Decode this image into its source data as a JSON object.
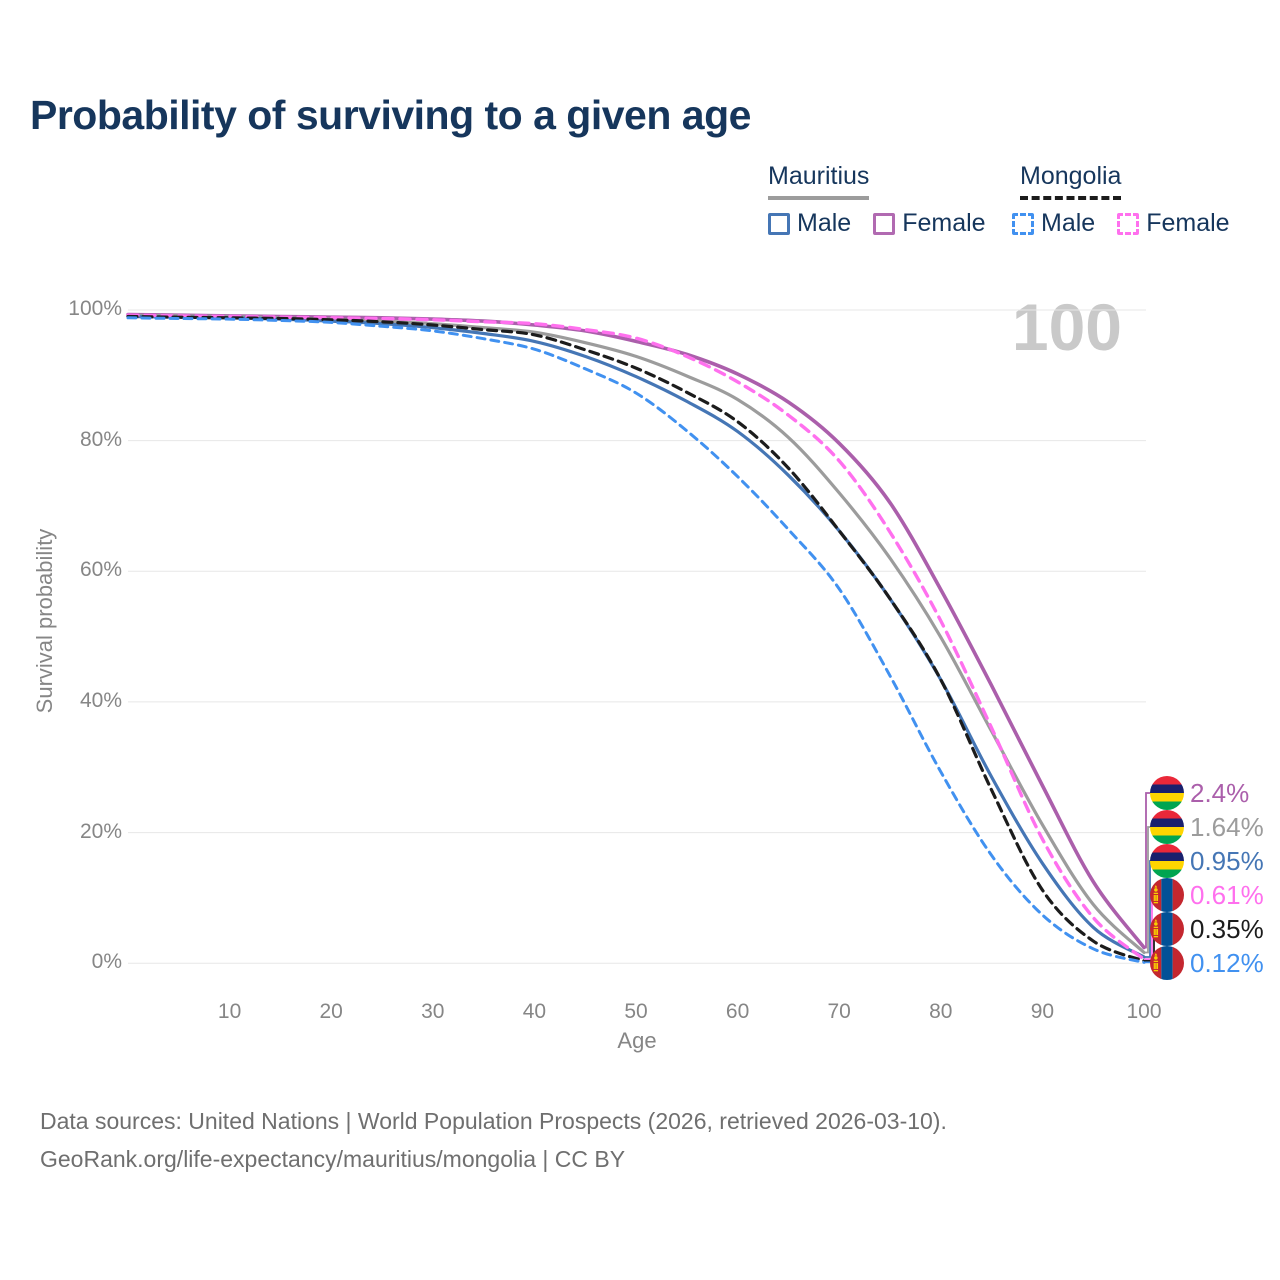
{
  "title": "Probability of surviving to a given age",
  "watermark_age": "100",
  "legend": {
    "groups": [
      {
        "country": "Mauritius",
        "line_style": "solid",
        "underline_color": "#9c9c9c",
        "items": [
          {
            "label": "Male",
            "color": "#4576b5"
          },
          {
            "label": "Female",
            "color": "#b16ab1"
          }
        ]
      },
      {
        "country": "Mongolia",
        "line_style": "dashed",
        "underline_color": "#1c1c1c",
        "items": [
          {
            "label": "Male",
            "color": "#4191f0"
          },
          {
            "label": "Female",
            "color": "#ff70ee"
          }
        ]
      }
    ]
  },
  "chart_data": {
    "type": "line",
    "title": "Probability of surviving to a given age",
    "xlabel": "Age",
    "ylabel": "Survival probability",
    "xlim": [
      0,
      100
    ],
    "ylim": [
      0,
      100
    ],
    "x_ticks": [
      10,
      20,
      30,
      40,
      50,
      60,
      70,
      80,
      90,
      100
    ],
    "y_ticks": [
      0,
      20,
      40,
      60,
      80,
      100
    ],
    "y_tick_labels": [
      "0%",
      "20%",
      "40%",
      "60%",
      "80%",
      "100%"
    ],
    "grid": "horizontal",
    "legend_position": "top-right",
    "x": [
      0,
      5,
      10,
      15,
      20,
      25,
      30,
      35,
      40,
      45,
      50,
      55,
      60,
      65,
      70,
      75,
      80,
      85,
      90,
      95,
      100
    ],
    "series": [
      {
        "name": "Mauritius Female",
        "country": "Mauritius",
        "sex": "Female",
        "color": "#ab5fab",
        "dash": null,
        "width": 3.6,
        "end_label": "2.4%",
        "values": [
          99.3,
          99.2,
          99.1,
          99.0,
          98.9,
          98.8,
          98.6,
          98.3,
          97.7,
          96.8,
          95.2,
          93.2,
          90.2,
          85.9,
          79.6,
          70.5,
          57.2,
          42.5,
          27.2,
          12.5,
          2.4
        ]
      },
      {
        "name": "Mauritius Both sexes",
        "country": "Mauritius",
        "sex": "Both",
        "color": "#9c9c9c",
        "dash": null,
        "width": 3.2,
        "end_label": "1.64%",
        "values": [
          99.2,
          99.1,
          99.0,
          98.8,
          98.6,
          98.3,
          97.9,
          97.3,
          96.6,
          95.0,
          92.9,
          89.9,
          86.3,
          80.5,
          72.0,
          62.0,
          49.9,
          35.5,
          21.2,
          9.0,
          1.64
        ]
      },
      {
        "name": "Mauritius Male",
        "country": "Mauritius",
        "sex": "Male",
        "color": "#4576b5",
        "dash": null,
        "width": 3.2,
        "end_label": "0.95%",
        "values": [
          99.0,
          98.9,
          98.8,
          98.6,
          98.3,
          97.9,
          97.3,
          96.4,
          95.2,
          92.9,
          89.8,
          86.0,
          81.4,
          74.7,
          66.2,
          55.8,
          43.4,
          28.5,
          15.3,
          5.5,
          0.95
        ]
      },
      {
        "name": "Mongolia Female",
        "country": "Mongolia",
        "sex": "Female",
        "color": "#ff70ee",
        "dash": "10 7",
        "width": 3.4,
        "end_label": "0.61%",
        "values": [
          99.2,
          99.1,
          99.0,
          98.9,
          98.8,
          98.7,
          98.5,
          98.2,
          97.9,
          97.0,
          95.7,
          92.9,
          89.0,
          83.9,
          76.9,
          66.0,
          52.4,
          36.0,
          19.0,
          7.0,
          0.61
        ]
      },
      {
        "name": "Mongolia Both sexes",
        "country": "Mongolia",
        "sex": "Both",
        "color": "#1c1c1c",
        "dash": "9 6",
        "width": 3.2,
        "end_label": "0.35%",
        "values": [
          99.0,
          98.9,
          98.8,
          98.7,
          98.5,
          98.2,
          97.7,
          97.0,
          96.2,
          93.9,
          91.1,
          87.4,
          82.9,
          75.8,
          66.2,
          55.8,
          43.4,
          26.5,
          11.2,
          3.4,
          0.35
        ]
      },
      {
        "name": "Mongolia Male",
        "country": "Mongolia",
        "sex": "Male",
        "color": "#4191f0",
        "dash": "8 6",
        "width": 3.0,
        "end_label": "0.12%",
        "values": [
          98.8,
          98.7,
          98.6,
          98.4,
          98.1,
          97.5,
          96.8,
          95.6,
          94.0,
          91.0,
          87.3,
          81.5,
          74.5,
          66.4,
          57.3,
          44.0,
          29.3,
          16.5,
          7.4,
          2.2,
          0.12
        ]
      }
    ]
  },
  "end_labels": [
    {
      "flag": "mauritius",
      "label": "2.4%",
      "color": "#ab5fab"
    },
    {
      "flag": "mauritius",
      "label": "1.64%",
      "color": "#9c9c9c"
    },
    {
      "flag": "mauritius",
      "label": "0.95%",
      "color": "#4576b5"
    },
    {
      "flag": "mongolia",
      "label": "0.61%",
      "color": "#ff70ee"
    },
    {
      "flag": "mongolia",
      "label": "0.35%",
      "color": "#1c1c1c"
    },
    {
      "flag": "mongolia",
      "label": "0.12%",
      "color": "#4191f0"
    }
  ],
  "flag_colors": {
    "mauritius": {
      "stripes": [
        "#EA2839",
        "#1A206D",
        "#FFD500",
        "#00A551"
      ]
    },
    "mongolia": {
      "red": "#C4272F",
      "blue": "#015197",
      "emblem": "#F9CF02"
    }
  },
  "footer": {
    "line1": "Data sources: United Nations | World Population Prospects (2026, retrieved 2026-03-10).",
    "line2": "GeoRank.org/life-expectancy/mauritius/mongolia | CC BY"
  }
}
